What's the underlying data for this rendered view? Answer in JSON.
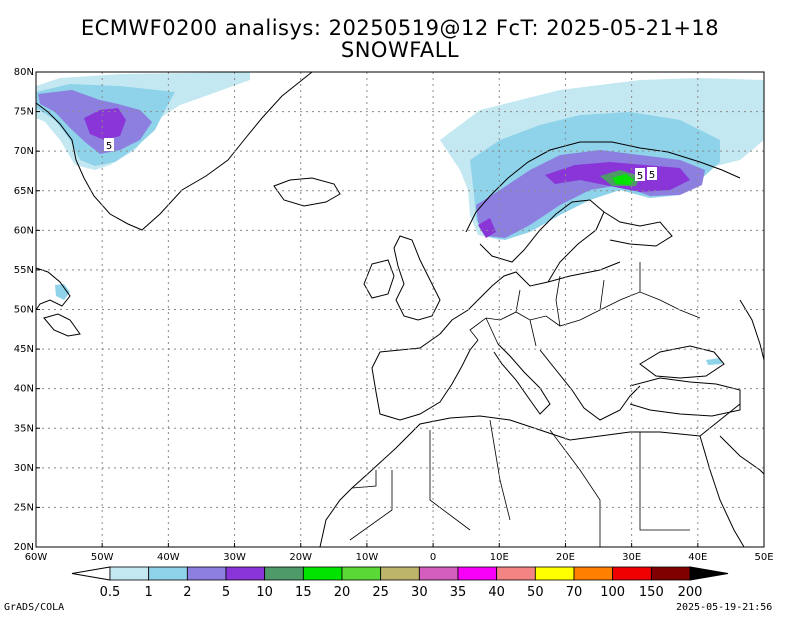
{
  "title_line1": "ECMWF0200 analisys: 20250519@12 FcT: 2025-05-21+18",
  "title_line2": "SNOWFALL",
  "footer_left": "GrADS/COLA",
  "footer_right": "2025-05-19-21:56",
  "lat_labels": [
    "80N",
    "75N",
    "70N",
    "65N",
    "60N",
    "55N",
    "50N",
    "45N",
    "40N",
    "35N",
    "30N",
    "25N",
    "20N"
  ],
  "lon_labels": [
    "60W",
    "50W",
    "40W",
    "30W",
    "20W",
    "10W",
    "0",
    "10E",
    "20E",
    "30E",
    "40E",
    "50E"
  ],
  "contour_labels": [
    "5",
    "5",
    "5"
  ],
  "colorbar": {
    "labels": [
      "0.5",
      "1",
      "2",
      "5",
      "10",
      "15",
      "20",
      "25",
      "30",
      "35",
      "40",
      "50",
      "70",
      "100",
      "150",
      "200"
    ],
    "colors": [
      "#c4e8f2",
      "#8fd3ea",
      "#8c7fe0",
      "#8a35d8",
      "#4e9a68",
      "#00e400",
      "#5ad836",
      "#bdb56a",
      "#d35ebd",
      "#f800f8",
      "#f48484",
      "#ffff00",
      "#ff7f00",
      "#f00000",
      "#800000"
    ]
  },
  "land_color": "#ffffff",
  "snow_colors": {
    "light": "#c4e8f2",
    "mid": "#8fd3ea",
    "blue": "#8c7fe0",
    "purple": "#8a35d8",
    "green": "#00e400"
  }
}
